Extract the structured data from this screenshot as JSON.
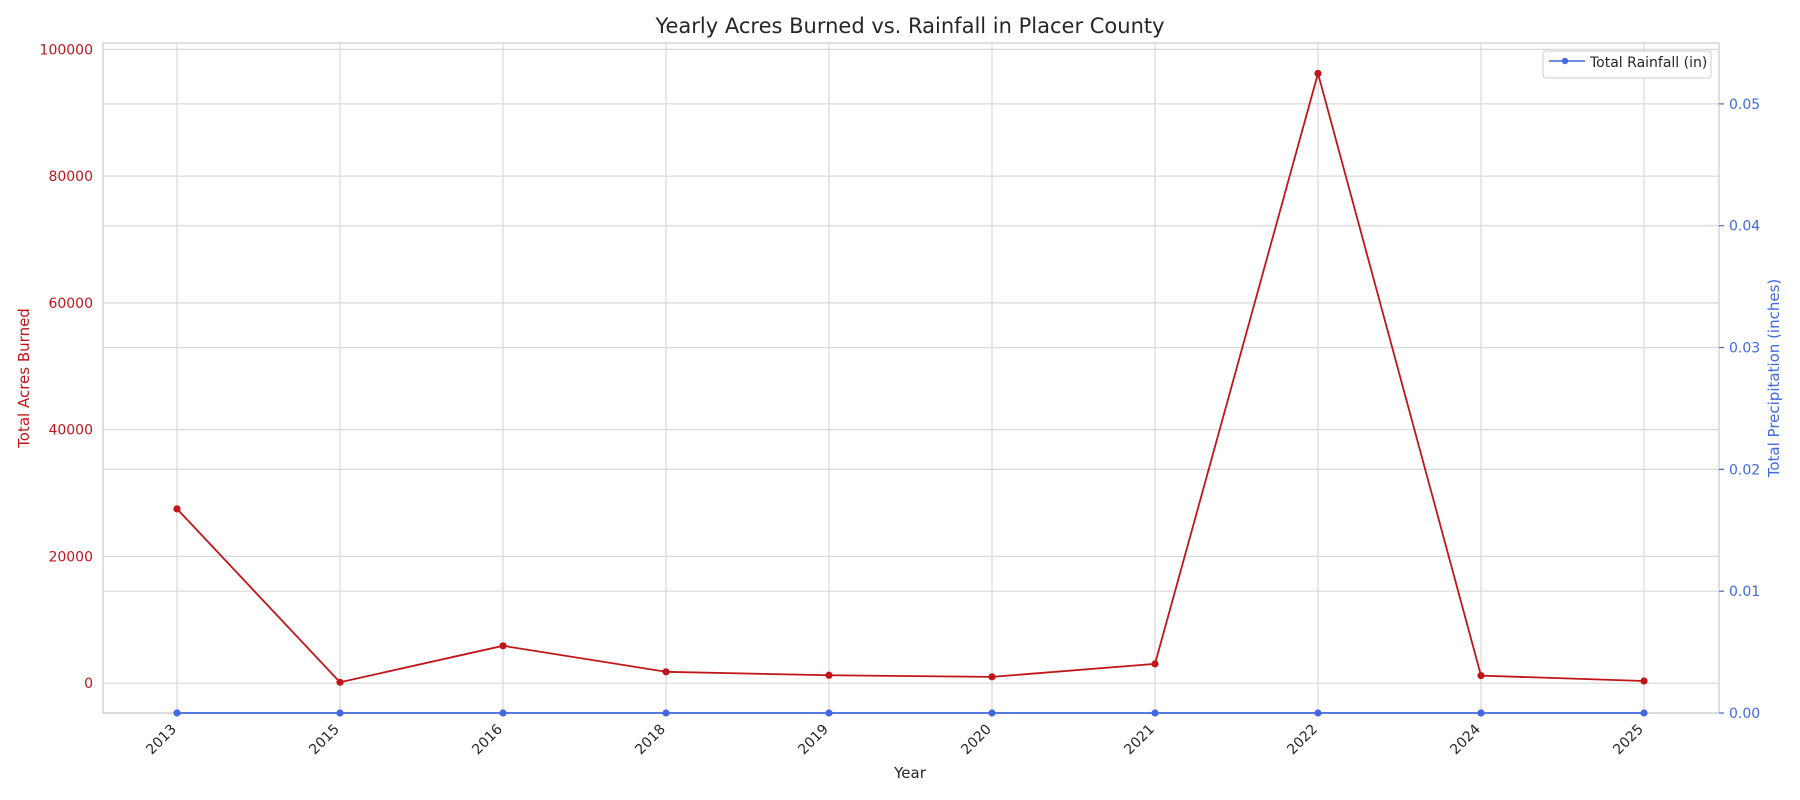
{
  "chart_data": {
    "type": "line",
    "title": "Yearly Acres Burned vs. Rainfall in Placer County",
    "xlabel": "Year",
    "ylabel_left": "Total Acres Burned",
    "ylabel_right": "Total Precipitation (inches)",
    "categories": [
      "2013",
      "2015",
      "2016",
      "2018",
      "2019",
      "2020",
      "2021",
      "2022",
      "2024",
      "2025"
    ],
    "series": [
      {
        "axis": "left",
        "color": "#c0161b",
        "values": [
          27500,
          150,
          5900,
          1800,
          1250,
          1000,
          3050,
          96200,
          1200,
          350
        ]
      },
      {
        "name": "Total Rainfall (in)",
        "axis": "right",
        "color": "#4169e1",
        "values": [
          0,
          0,
          0,
          0,
          0,
          0,
          0,
          0,
          0,
          0
        ]
      }
    ],
    "ylim_left": [
      -4700,
      101000
    ],
    "ylim_right": [
      0,
      0.055
    ],
    "yticks_left": [
      "0",
      "20000",
      "40000",
      "60000",
      "80000",
      "100000"
    ],
    "yticks_right": [
      "0.00",
      "0.01",
      "0.02",
      "0.03",
      "0.04",
      "0.05"
    ],
    "grid": true,
    "legend_position": "top-right",
    "legend": [
      "Total Rainfall (in)"
    ]
  }
}
